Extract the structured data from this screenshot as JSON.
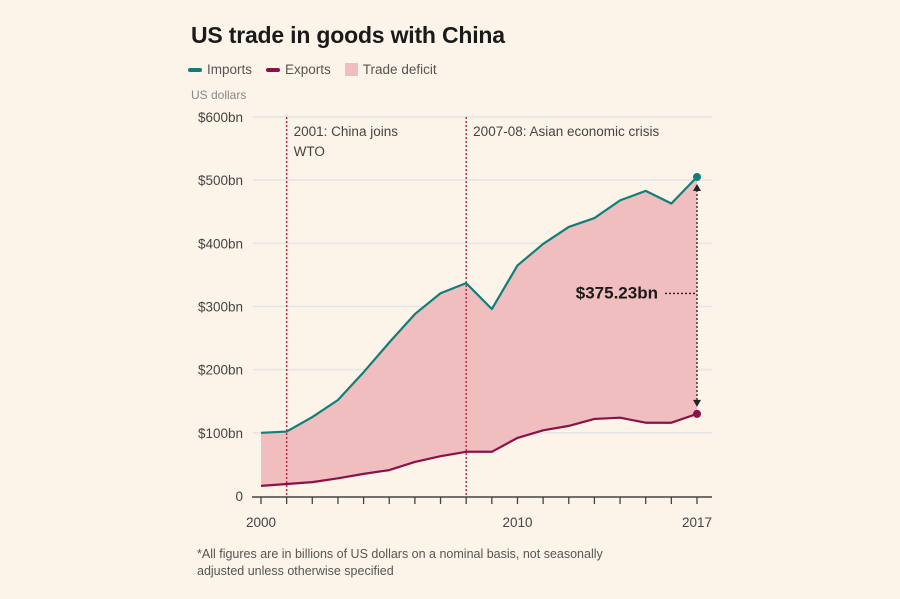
{
  "colors": {
    "imports": "#0f7f78",
    "exports": "#8b1149",
    "deficit": "#f0bebe",
    "event_line": "#c0213a",
    "grid": "#e3e5ea",
    "background": "#fdf4e9"
  },
  "chart_data": {
    "type": "area",
    "title": "US trade in goods with China",
    "ylabel": "US dollars",
    "xlabel": "",
    "ylim": [
      0,
      600
    ],
    "xlim": [
      2000,
      2017
    ],
    "grid": true,
    "legend_position": "top-left",
    "legend": [
      "Imports",
      "Exports",
      "Trade deficit"
    ],
    "y_ticks": [
      {
        "value": 0,
        "label": "0"
      },
      {
        "value": 100,
        "label": "$100bn"
      },
      {
        "value": 200,
        "label": "$200bn"
      },
      {
        "value": 300,
        "label": "$300bn"
      },
      {
        "value": 400,
        "label": "$400bn"
      },
      {
        "value": 500,
        "label": "$500bn"
      },
      {
        "value": 600,
        "label": "$600bn"
      }
    ],
    "x_tick_labels": [
      {
        "value": 2000,
        "label": "2000"
      },
      {
        "value": 2010,
        "label": "2010"
      },
      {
        "value": 2017,
        "label": "2017"
      }
    ],
    "x": [
      2000,
      2001,
      2002,
      2003,
      2004,
      2005,
      2006,
      2007,
      2008,
      2009,
      2010,
      2011,
      2012,
      2013,
      2014,
      2015,
      2016,
      2017
    ],
    "series": [
      {
        "name": "Imports",
        "values": [
          100,
          102,
          125,
          152,
          196,
          243,
          288,
          321,
          337,
          296,
          365,
          399,
          426,
          440,
          468,
          483,
          463,
          505
        ]
      },
      {
        "name": "Exports",
        "values": [
          16,
          19,
          22,
          28,
          35,
          41,
          54,
          63,
          70,
          70,
          92,
          104,
          111,
          122,
          124,
          116,
          116,
          130
        ]
      }
    ],
    "annotations": [
      {
        "x": 2001,
        "line1": "2001: China joins",
        "line2": "WTO"
      },
      {
        "x": 2008,
        "line1": "2007-08: Asian economic crisis",
        "line2": ""
      }
    ],
    "callout": {
      "x": 2017,
      "label": "$375.23bn"
    }
  },
  "footnote_line1": "*All figures are in billions of US dollars on a nominal basis, not seasonally",
  "footnote_line2": "adjusted unless otherwise specified"
}
